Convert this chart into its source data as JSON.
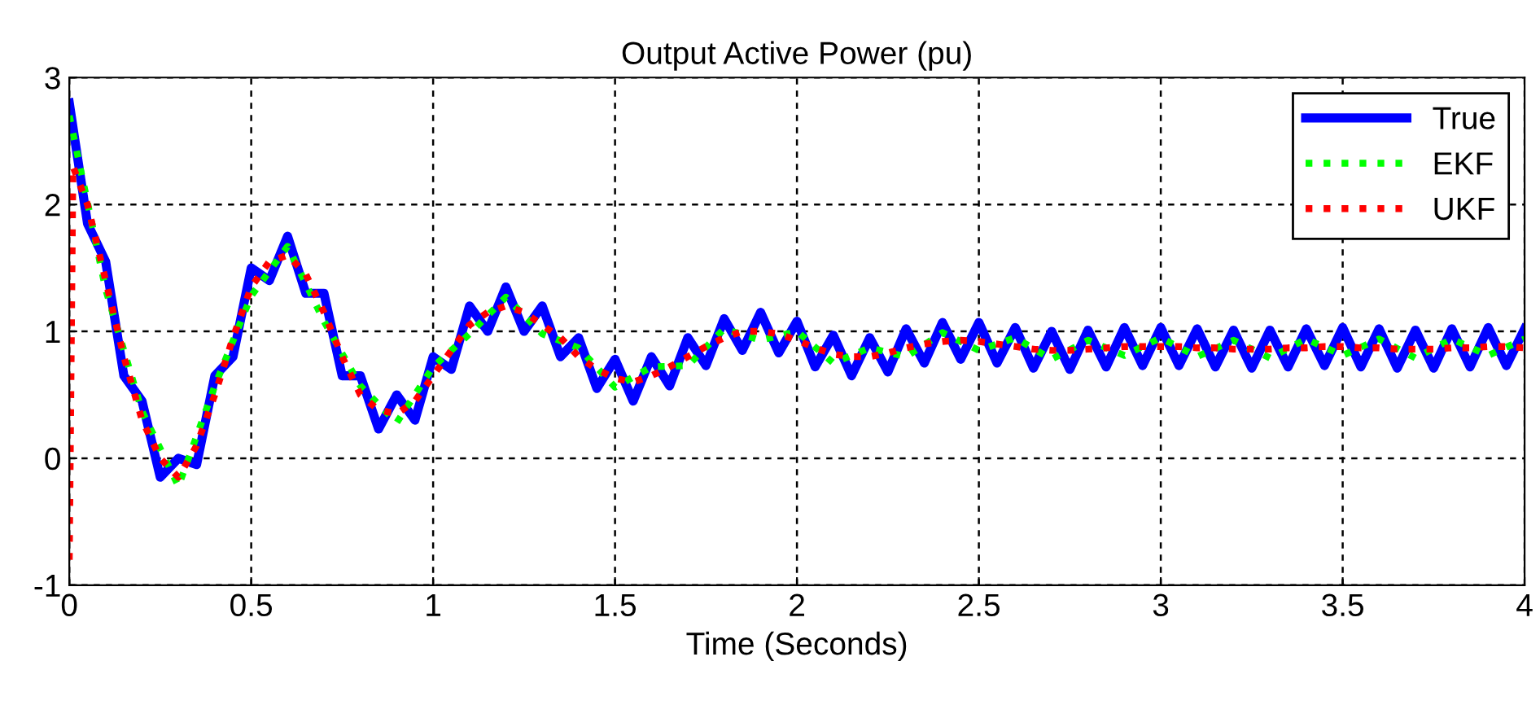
{
  "chart_data": {
    "type": "line",
    "title": "Output Active Power (pu)",
    "xlabel": "Time (Seconds)",
    "xlim": [
      0,
      4
    ],
    "xticks": [
      0,
      0.5,
      1,
      1.5,
      2,
      2.5,
      3,
      3.5,
      4
    ],
    "ylim": [
      -1,
      3
    ],
    "yticks": [
      -1,
      0,
      1,
      2,
      3
    ],
    "grid": true,
    "legend": "top right",
    "x": [
      0,
      0.05,
      0.1,
      0.15,
      0.2,
      0.25,
      0.3,
      0.35,
      0.4,
      0.45,
      0.5,
      0.55,
      0.6,
      0.65,
      0.7,
      0.75,
      0.8,
      0.85,
      0.9,
      0.95,
      1,
      1.05,
      1.1,
      1.15,
      1.2,
      1.25,
      1.3,
      1.35,
      1.4,
      1.45,
      1.5,
      1.55,
      1.6,
      1.65,
      1.7,
      1.75,
      1.8,
      1.85,
      1.9,
      1.95,
      2,
      2.05,
      2.1,
      2.15,
      2.2,
      2.25,
      2.3,
      2.35,
      2.4,
      2.45,
      2.5,
      2.55,
      2.6,
      2.65,
      2.7,
      2.75,
      2.8,
      2.85,
      2.9,
      2.95,
      3,
      3.05,
      3.1,
      3.15,
      3.2,
      3.25,
      3.3,
      3.35,
      3.4,
      3.45,
      3.5,
      3.55,
      3.6,
      3.65,
      3.7,
      3.75,
      3.8,
      3.85,
      3.9,
      3.95,
      4
    ],
    "series": [
      {
        "name": "True",
        "color": "#0000ff",
        "line_style": "solid",
        "values": [
          2.8,
          1.85,
          1.55,
          0.65,
          0.45,
          -0.15,
          0.0,
          -0.05,
          0.65,
          0.8,
          1.5,
          1.4,
          1.75,
          1.3,
          1.3,
          0.65,
          0.65,
          0.23,
          0.5,
          0.3,
          0.8,
          0.7,
          1.2,
          1.0,
          1.35,
          1.0,
          1.2,
          0.8,
          0.95,
          0.55,
          0.78,
          0.45,
          0.8,
          0.57,
          0.95,
          0.73,
          1.1,
          0.85,
          1.15,
          0.83,
          1.08,
          0.72,
          0.97,
          0.65,
          0.95,
          0.68,
          1.02,
          0.75,
          1.07,
          0.78,
          1.07,
          0.75,
          1.03,
          0.71,
          1.0,
          0.7,
          1.01,
          0.72,
          1.03,
          0.73,
          1.03,
          0.73,
          1.02,
          0.72,
          1.01,
          0.71,
          1.01,
          0.72,
          1.02,
          0.73,
          1.03,
          0.72,
          1.02,
          0.71,
          1.01,
          0.71,
          1.02,
          0.72,
          1.03,
          0.73,
          1.02
        ]
      },
      {
        "name": "EKF",
        "color": "#00ff00",
        "line_style": "dotted",
        "x": [
          0,
          0.1,
          0.2,
          0.3,
          0.4,
          0.5,
          0.6,
          0.7,
          0.8,
          0.9,
          1,
          1.1,
          1.2,
          1.3,
          1.4,
          1.5,
          1.6,
          1.7,
          1.8,
          1.9,
          2,
          2.1,
          2.2,
          2.3,
          2.4,
          2.5,
          2.6,
          2.7,
          2.8,
          2.9,
          3,
          3.1,
          3.2,
          3.3,
          3.4,
          3.5,
          3.6,
          3.7,
          3.8,
          3.9,
          4
        ],
        "values": [
          2.7,
          1.33,
          0.37,
          -0.22,
          0.57,
          1.28,
          1.67,
          1.08,
          0.57,
          0.28,
          0.72,
          0.98,
          1.27,
          0.98,
          0.87,
          0.56,
          0.72,
          0.73,
          1.02,
          0.93,
          1.0,
          0.75,
          0.87,
          0.8,
          0.99,
          0.85,
          0.95,
          0.78,
          0.93,
          0.81,
          0.95,
          0.8,
          0.93,
          0.79,
          0.94,
          0.81,
          0.94,
          0.79,
          0.94,
          0.81,
          0.94
        ]
      },
      {
        "name": "UKF",
        "color": "#ff0000",
        "line_style": "dotted",
        "x": [
          0,
          0.01,
          0.05,
          0.1,
          0.15,
          0.2,
          0.25,
          0.3,
          0.35,
          0.4,
          0.45,
          0.5,
          0.55,
          0.6,
          0.65,
          0.7,
          0.75,
          0.8,
          0.85,
          0.9,
          0.95,
          1,
          1.05,
          1.1,
          1.15,
          1.2,
          1.25,
          1.3,
          1.35,
          1.4,
          1.45,
          1.5,
          1.55,
          1.6,
          1.65,
          1.7,
          1.75,
          1.8,
          1.85,
          1.9,
          1.95,
          2,
          2.05,
          2.1,
          2.15,
          2.2,
          2.25,
          2.3,
          2.35,
          2.4,
          2.45,
          2.5,
          2.55,
          2.6,
          2.65,
          2.7,
          2.75,
          2.8,
          2.85,
          2.9,
          2.95,
          3,
          3.05,
          3.1,
          3.15,
          3.2,
          3.25,
          3.3,
          3.35,
          3.4,
          3.45,
          3.5,
          3.55,
          3.6,
          3.65,
          3.7,
          3.75,
          3.8,
          3.85,
          3.9,
          3.95,
          4
        ],
        "values": [
          -0.8,
          2.3,
          2.0,
          1.4,
          0.8,
          0.3,
          0.0,
          -0.15,
          0.1,
          0.5,
          0.95,
          1.35,
          1.55,
          1.6,
          1.45,
          1.15,
          0.8,
          0.5,
          0.38,
          0.35,
          0.45,
          0.65,
          0.85,
          1.05,
          1.15,
          1.2,
          1.15,
          1.05,
          0.95,
          0.8,
          0.7,
          0.63,
          0.6,
          0.65,
          0.72,
          0.8,
          0.88,
          0.95,
          1.0,
          1.0,
          0.98,
          0.93,
          0.87,
          0.82,
          0.8,
          0.8,
          0.83,
          0.87,
          0.9,
          0.92,
          0.93,
          0.92,
          0.9,
          0.88,
          0.86,
          0.85,
          0.85,
          0.86,
          0.87,
          0.88,
          0.88,
          0.88,
          0.88,
          0.87,
          0.87,
          0.86,
          0.86,
          0.86,
          0.87,
          0.87,
          0.88,
          0.88,
          0.87,
          0.87,
          0.86,
          0.86,
          0.86,
          0.87,
          0.87,
          0.88,
          0.88,
          0.87
        ]
      }
    ]
  }
}
